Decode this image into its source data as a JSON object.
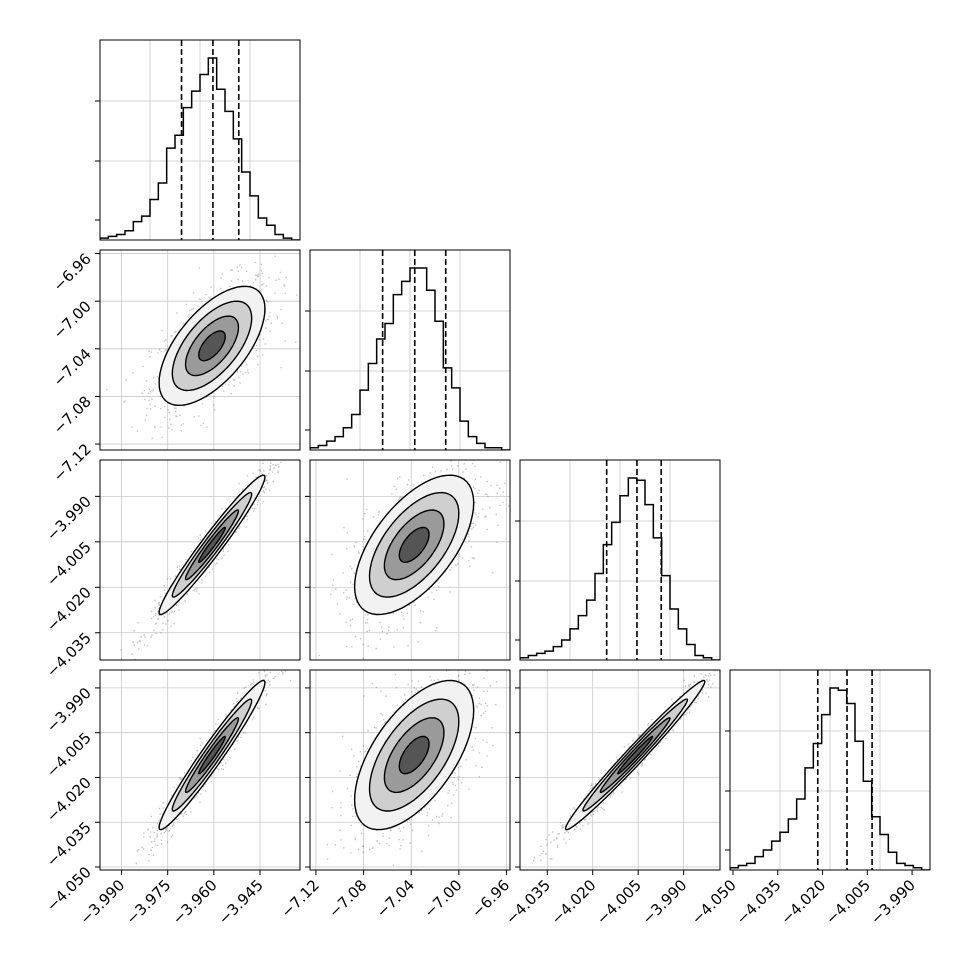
{
  "chart_data": {
    "type": "corner",
    "grid": true,
    "parameters": [
      {
        "range": [
          -3.997,
          -3.932
        ],
        "ticks": [
          -3.99,
          -3.975,
          -3.96,
          -3.945
        ],
        "tick_labels": [
          "−3.990",
          "−3.975",
          "−3.960",
          "−3.945"
        ]
      },
      {
        "range": [
          -7.125,
          -6.957
        ],
        "ticks": [
          -7.12,
          -7.08,
          -7.04,
          -7.0,
          -6.96
        ],
        "tick_labels": [
          "−7.12",
          "−7.08",
          "−7.04",
          "−7.00",
          "−6.96"
        ]
      },
      {
        "range": [
          -4.044,
          -3.978
        ],
        "ticks": [
          -4.035,
          -4.02,
          -4.005,
          -3.99
        ],
        "tick_labels": [
          "−4.035",
          "−4.020",
          "−4.005",
          "−3.990"
        ]
      },
      {
        "range": [
          -4.051,
          -3.984
        ],
        "ticks": [
          -4.05,
          -4.035,
          -4.02,
          -4.005,
          -3.99
        ],
        "tick_labels": [
          "−4.050",
          "−4.035",
          "−4.020",
          "−4.005",
          "−3.990"
        ]
      }
    ],
    "histograms": [
      {
        "quantiles": [
          -3.9705,
          -3.9603,
          -3.9519
        ],
        "counts": [
          1,
          2,
          3,
          5,
          10,
          13,
          22,
          31,
          50,
          57,
          72,
          81,
          90,
          99,
          82,
          70,
          55,
          37,
          24,
          12,
          8,
          3,
          1,
          0
        ]
      },
      {
        "quantiles": [
          -7.064,
          -7.037,
          -7.011
        ],
        "counts": [
          1,
          2,
          4,
          6,
          10,
          16,
          27,
          39,
          50,
          57,
          70,
          76,
          82,
          82,
          72,
          58,
          37,
          28,
          13,
          6,
          3,
          1,
          1,
          0
        ]
      },
      {
        "quantiles": [
          -4.0154,
          -4.0054,
          -3.9974
        ],
        "counts": [
          1,
          2,
          3,
          4,
          6,
          9,
          14,
          20,
          27,
          39,
          52,
          62,
          74,
          82,
          81,
          70,
          55,
          38,
          23,
          14,
          7,
          2,
          1,
          0
        ]
      },
      {
        "quantiles": [
          -4.0216,
          -4.0118,
          -4.0034
        ],
        "counts": [
          1,
          2,
          3,
          6,
          9,
          13,
          17,
          23,
          32,
          46,
          57,
          70,
          82,
          81,
          75,
          58,
          40,
          24,
          16,
          8,
          3,
          2,
          1,
          0
        ]
      }
    ],
    "pairs": [
      {
        "row": 1,
        "col": 0,
        "center": [
          -3.9606,
          -7.0375
        ],
        "sigma": [
          0.0086,
          0.025
        ],
        "rho": 0.62
      },
      {
        "row": 2,
        "col": 0,
        "center": [
          -3.9606,
          -4.006
        ],
        "sigma": [
          0.0086,
          0.0115
        ],
        "rho": 0.97
      },
      {
        "row": 2,
        "col": 1,
        "center": [
          -7.0375,
          -4.006
        ],
        "sigma": [
          0.025,
          0.0115
        ],
        "rho": 0.6
      },
      {
        "row": 3,
        "col": 0,
        "center": [
          -3.9606,
          -4.0125
        ],
        "sigma": [
          0.0086,
          0.0125
        ],
        "rho": 0.97
      },
      {
        "row": 3,
        "col": 1,
        "center": [
          -7.0375,
          -4.0125
        ],
        "sigma": [
          0.025,
          0.0125
        ],
        "rho": 0.6
      },
      {
        "row": 3,
        "col": 2,
        "center": [
          -4.006,
          -4.0125
        ],
        "sigma": [
          0.0115,
          0.0125
        ],
        "rho": 0.985
      }
    ]
  }
}
